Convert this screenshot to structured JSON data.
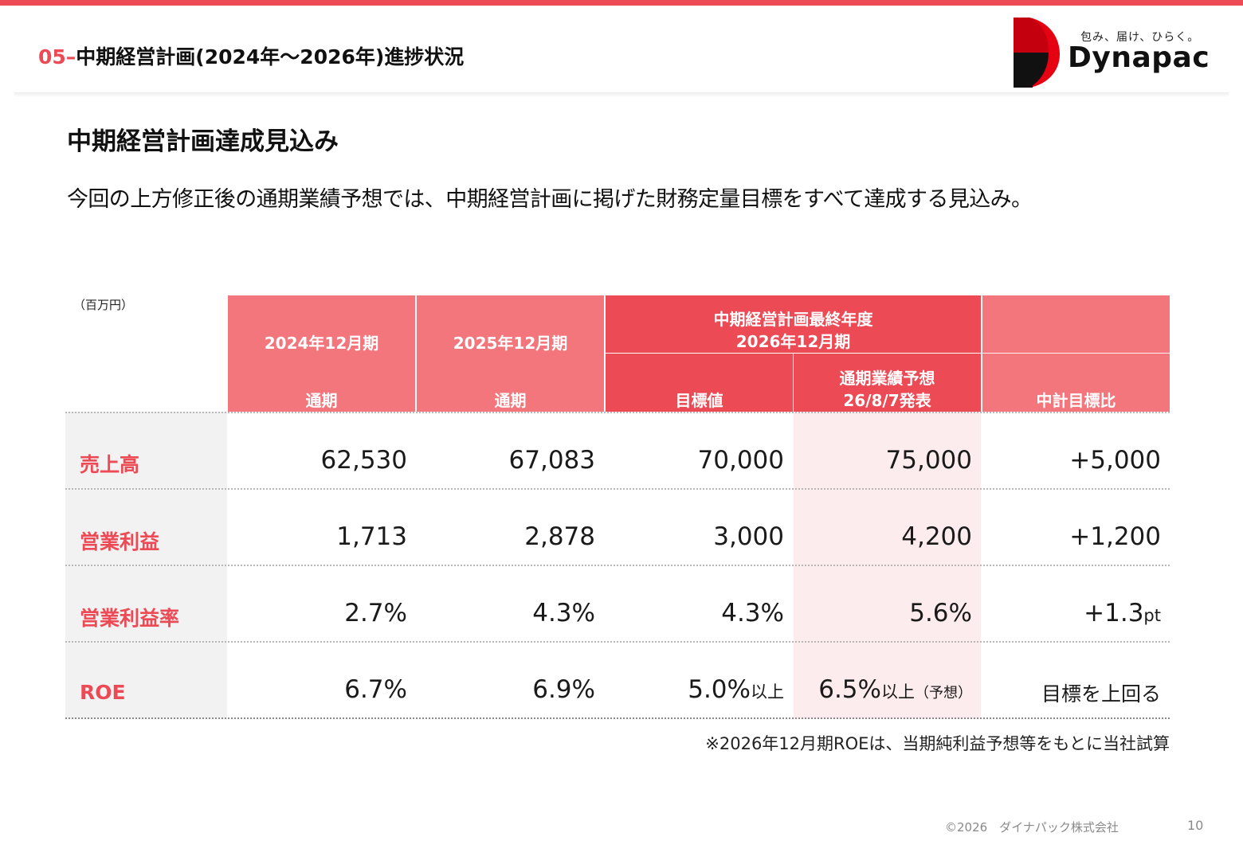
{
  "header": {
    "section_number": "05–",
    "section_title": "中期経営計画(2024年～2026年)進捗状況",
    "logo_tagline": "包み、届け、ひらく。",
    "logo_name": "Dynapac"
  },
  "colors": {
    "accent": "#ec4a55",
    "header_light": "#f2767c",
    "forecast_bg": "#fdeced",
    "label_bg": "#f2f2f2"
  },
  "main": {
    "heading": "中期経営計画達成見込み",
    "lead": "今回の上方修正後の通期業績予想では、中期経営計画に掲げた財務定量目標をすべて達成する見込み。"
  },
  "table": {
    "unit": "（百万円）",
    "headers": {
      "fy2024": "2024年12月期",
      "fy2024_sub": "通期",
      "fy2025": "2025年12月期",
      "fy2025_sub": "通期",
      "final_year_line1": "中期経営計画最終年度",
      "final_year_line2": "2026年12月期",
      "target": "目標値",
      "forecast_line1": "通期業績予想",
      "forecast_line2": "26/8/7発表",
      "vs_plan": "中計目標比"
    },
    "rows": [
      {
        "label": "売上高",
        "fy2024": "62,530",
        "fy2025": "67,083",
        "target": "70,000",
        "forecast": "75,000",
        "vs_plan": "+5,000"
      },
      {
        "label": "営業利益",
        "fy2024": "1,713",
        "fy2025": "2,878",
        "target": "3,000",
        "forecast": "4,200",
        "vs_plan": "+1,200"
      },
      {
        "label": "営業利益率",
        "fy2024": "2.7%",
        "fy2025": "4.3%",
        "target": "4.3%",
        "forecast": "5.6%",
        "vs_plan": "+1.3",
        "vs_plan_unit": "pt"
      },
      {
        "label": "ROE",
        "fy2024": "6.7%",
        "fy2025": "6.9%",
        "target": "5.0%",
        "target_suffix": "以上",
        "forecast": "6.5%",
        "forecast_suffix": "以上",
        "forecast_note": "（予想）",
        "vs_plan": "目標を上回る"
      }
    ],
    "note": "※2026年12月期ROEは、当期純利益予想等をもとに当社試算"
  },
  "footer": {
    "copyright": "©2026　ダイナパック株式会社",
    "page": "10"
  }
}
